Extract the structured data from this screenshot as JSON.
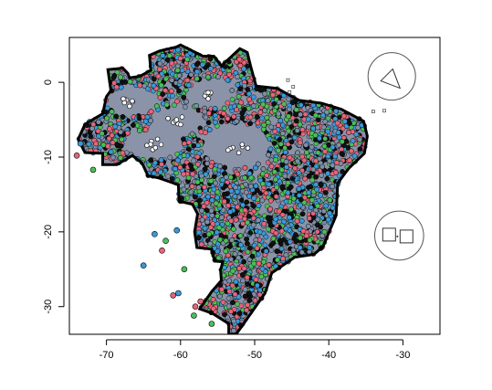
{
  "chart_data": {
    "type": "scatter",
    "title": "",
    "xlabel": "",
    "ylabel": "",
    "xlim": [
      -75,
      -25
    ],
    "ylim": [
      -33.7,
      6
    ],
    "x_ticks": [
      -70,
      -60,
      -50,
      -40,
      -30
    ],
    "y_ticks": [
      0,
      -10,
      -20,
      -30
    ],
    "x_tick_labels": [
      "-70",
      "-60",
      "-50",
      "-40",
      "-30"
    ],
    "y_tick_labels": [
      "0",
      "-10",
      "-20",
      "-30"
    ],
    "grid": false,
    "legend": "none",
    "point_colors": [
      "#3a9ad9",
      "#e8647a",
      "#4cbf5a",
      "#111111",
      "#7e8fa8"
    ],
    "map_region": "Brazil",
    "inset_maps": [
      {
        "center": [
          -31.5,
          0.8
        ],
        "radius_deg": 3.2,
        "content": "triangle island"
      },
      {
        "center": [
          -30.5,
          -20.5
        ],
        "radius_deg": 3.3,
        "content": "two square islands"
      }
    ],
    "outliers": [
      {
        "x": -65,
        "y": -24.5
      },
      {
        "x": -61,
        "y": -28.5
      },
      {
        "x": -62,
        "y": -21.2
      },
      {
        "x": -60.5,
        "y": -19.8
      },
      {
        "x": -62.5,
        "y": -22.5
      },
      {
        "x": -59.5,
        "y": -25
      },
      {
        "x": -60.3,
        "y": -28.2
      },
      {
        "x": -58,
        "y": -30
      },
      {
        "x": -58.2,
        "y": -31.2
      },
      {
        "x": -73.5,
        "y": -8.2
      },
      {
        "x": -74,
        "y": -9.8
      },
      {
        "x": -71.8,
        "y": -11.7
      },
      {
        "x": -63.5,
        "y": -20.3
      },
      {
        "x": -57.3,
        "y": -29.3
      },
      {
        "x": -55.8,
        "y": -32.3
      }
    ],
    "island_points": [
      {
        "x": -32.5,
        "y": -3.8
      },
      {
        "x": -34,
        "y": -3.9
      },
      {
        "x": -45.5,
        "y": 0.3
      },
      {
        "x": -44.8,
        "y": -0.6
      },
      {
        "x": -45.3,
        "y": -1.3
      }
    ],
    "point_count_shown": 5200
  }
}
